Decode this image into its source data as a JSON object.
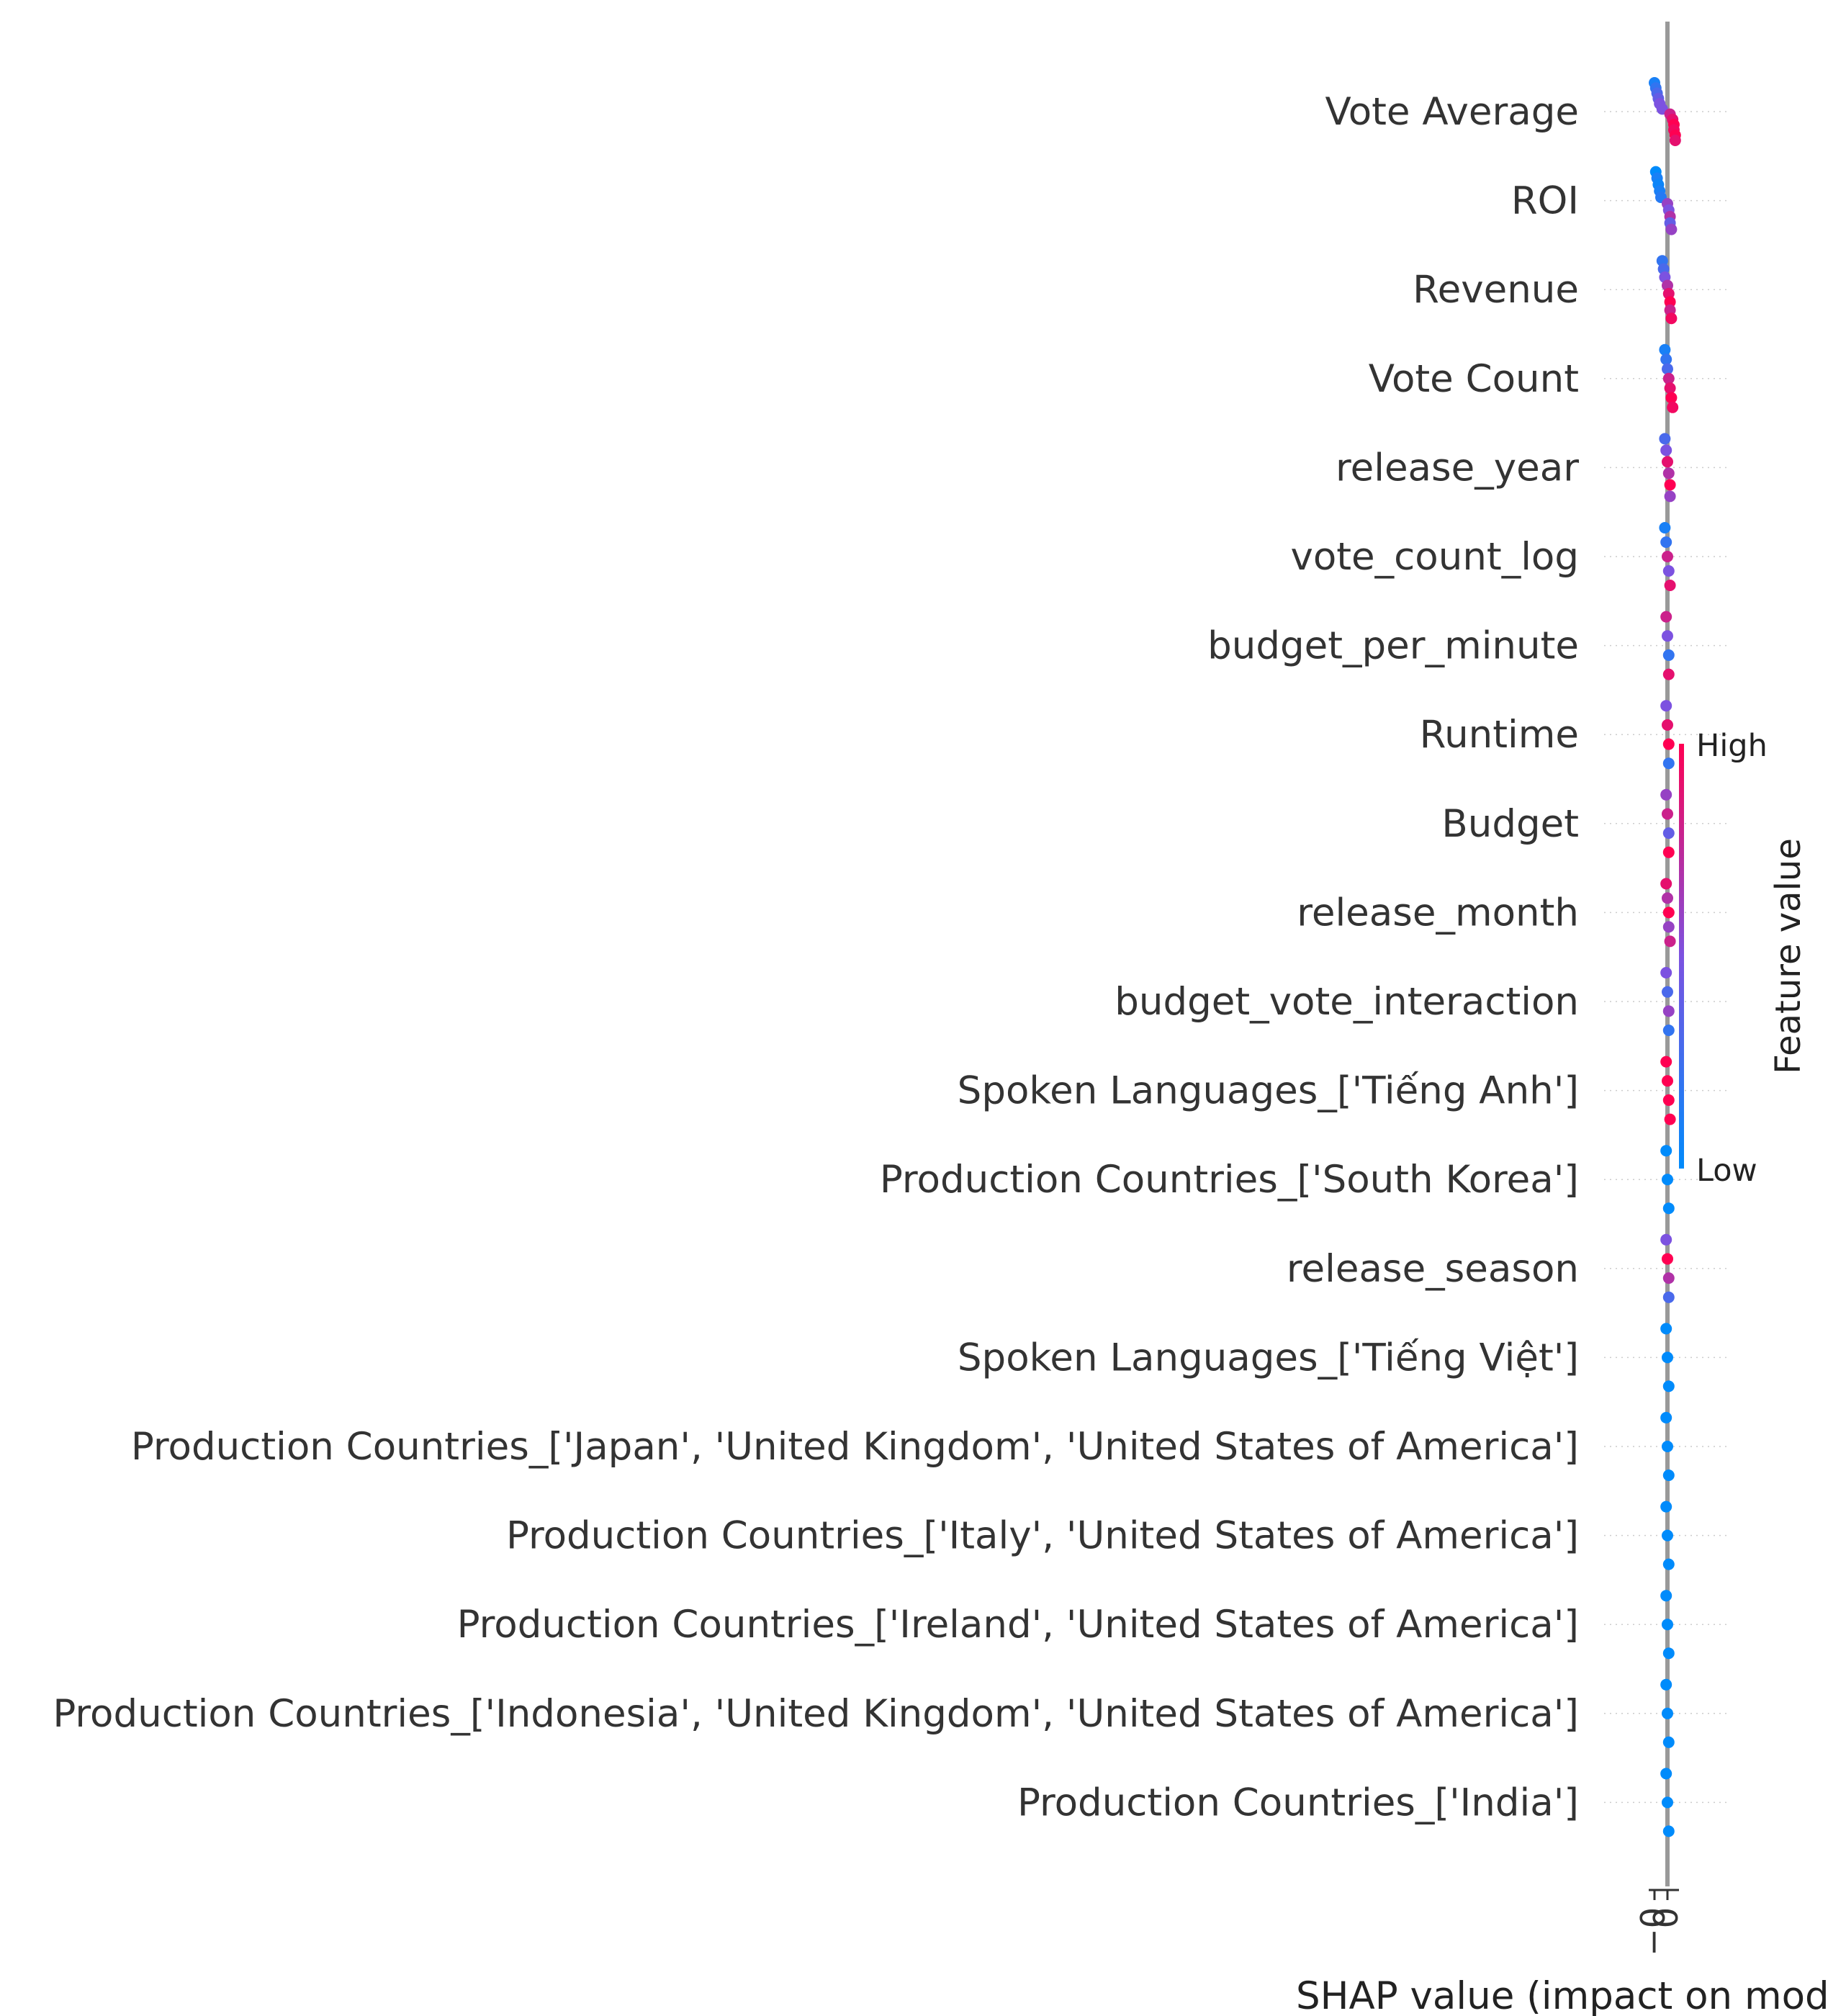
{
  "chart_data": {
    "type": "scatter",
    "subtype": "shap-beeswarm",
    "xlabel": "SHAP value (impact on model output)",
    "ylabel": "",
    "xlim": [
      -0.03,
      0.12
    ],
    "xticks": [
      {
        "value": -0.01,
        "label": "−0"
      },
      {
        "value": 0.0,
        "label": "0"
      }
    ],
    "colorbar": {
      "label": "Feature value",
      "high_label": "High",
      "low_label": "Low",
      "high_color": "#ff0052",
      "mid_color": "#7c52e0",
      "low_color": "#008bfb"
    },
    "features": [
      {
        "name": "Vote Average",
        "points": [
          {
            "shap": -0.01,
            "value": 0.1
          },
          {
            "shap": -0.009,
            "value": 0.2
          },
          {
            "shap": -0.008,
            "value": 0.3
          },
          {
            "shap": -0.007,
            "value": 0.4
          },
          {
            "shap": -0.006,
            "value": 0.5
          },
          {
            "shap": -0.004,
            "value": 0.5
          },
          {
            "shap": 0.002,
            "value": 0.8
          },
          {
            "shap": 0.004,
            "value": 0.9
          },
          {
            "shap": 0.005,
            "value": 1.0
          },
          {
            "shap": 0.005,
            "value": 0.95
          },
          {
            "shap": 0.006,
            "value": 1.0
          },
          {
            "shap": 0.006,
            "value": 0.9
          }
        ]
      },
      {
        "name": "ROI",
        "points": [
          {
            "shap": -0.009,
            "value": 0.0
          },
          {
            "shap": -0.008,
            "value": 0.1
          },
          {
            "shap": -0.007,
            "value": 0.05
          },
          {
            "shap": -0.006,
            "value": 0.1
          },
          {
            "shap": -0.005,
            "value": 0.15
          },
          {
            "shap": 0.0,
            "value": 0.6
          },
          {
            "shap": 0.001,
            "value": 0.5
          },
          {
            "shap": 0.002,
            "value": 0.7
          },
          {
            "shap": 0.002,
            "value": 0.4
          },
          {
            "shap": 0.003,
            "value": 0.6
          }
        ]
      },
      {
        "name": "Revenue",
        "points": [
          {
            "shap": -0.004,
            "value": 0.2
          },
          {
            "shap": -0.003,
            "value": 0.3
          },
          {
            "shap": -0.002,
            "value": 0.5
          },
          {
            "shap": 0.0,
            "value": 0.7
          },
          {
            "shap": 0.001,
            "value": 0.9
          },
          {
            "shap": 0.002,
            "value": 1.0
          },
          {
            "shap": 0.002,
            "value": 0.8
          },
          {
            "shap": 0.003,
            "value": 0.95
          }
        ]
      },
      {
        "name": "Vote Count",
        "points": [
          {
            "shap": -0.002,
            "value": 0.1
          },
          {
            "shap": -0.001,
            "value": 0.2
          },
          {
            "shap": 0.0,
            "value": 0.3
          },
          {
            "shap": 0.001,
            "value": 0.8
          },
          {
            "shap": 0.002,
            "value": 0.9
          },
          {
            "shap": 0.003,
            "value": 1.0
          },
          {
            "shap": 0.004,
            "value": 0.95
          }
        ]
      },
      {
        "name": "release_year",
        "points": [
          {
            "shap": -0.002,
            "value": 0.3
          },
          {
            "shap": -0.001,
            "value": 0.5
          },
          {
            "shap": 0.0,
            "value": 0.9
          },
          {
            "shap": 0.001,
            "value": 0.7
          },
          {
            "shap": 0.002,
            "value": 1.0
          },
          {
            "shap": 0.002,
            "value": 0.6
          }
        ]
      },
      {
        "name": "vote_count_log",
        "points": [
          {
            "shap": -0.002,
            "value": 0.1
          },
          {
            "shap": -0.001,
            "value": 0.2
          },
          {
            "shap": 0.0,
            "value": 0.8
          },
          {
            "shap": 0.001,
            "value": 0.5
          },
          {
            "shap": 0.002,
            "value": 0.9
          }
        ]
      },
      {
        "name": "budget_per_minute",
        "points": [
          {
            "shap": -0.001,
            "value": 0.8
          },
          {
            "shap": 0.0,
            "value": 0.5
          },
          {
            "shap": 0.001,
            "value": 0.2
          },
          {
            "shap": 0.001,
            "value": 0.9
          }
        ]
      },
      {
        "name": "Runtime",
        "points": [
          {
            "shap": -0.001,
            "value": 0.5
          },
          {
            "shap": 0.0,
            "value": 0.9
          },
          {
            "shap": 0.001,
            "value": 1.0
          },
          {
            "shap": 0.001,
            "value": 0.2
          }
        ]
      },
      {
        "name": "Budget",
        "points": [
          {
            "shap": -0.001,
            "value": 0.6
          },
          {
            "shap": 0.0,
            "value": 0.8
          },
          {
            "shap": 0.001,
            "value": 0.4
          },
          {
            "shap": 0.001,
            "value": 1.0
          }
        ]
      },
      {
        "name": "release_month",
        "points": [
          {
            "shap": -0.001,
            "value": 0.9
          },
          {
            "shap": 0.0,
            "value": 0.7
          },
          {
            "shap": 0.001,
            "value": 1.0
          },
          {
            "shap": 0.001,
            "value": 0.6
          },
          {
            "shap": 0.002,
            "value": 0.8
          }
        ]
      },
      {
        "name": "budget_vote_interaction",
        "points": [
          {
            "shap": -0.001,
            "value": 0.5
          },
          {
            "shap": 0.0,
            "value": 0.3
          },
          {
            "shap": 0.001,
            "value": 0.6
          },
          {
            "shap": 0.001,
            "value": 0.2
          }
        ]
      },
      {
        "name": "Spoken Languages_['Tiếng Anh']",
        "points": [
          {
            "shap": -0.001,
            "value": 1.0
          },
          {
            "shap": 0.0,
            "value": 1.0
          },
          {
            "shap": 0.001,
            "value": 1.0
          },
          {
            "shap": 0.002,
            "value": 1.0
          }
        ]
      },
      {
        "name": "Production Countries_['South Korea']",
        "points": [
          {
            "shap": -0.001,
            "value": 0.0
          },
          {
            "shap": 0.0,
            "value": 0.0
          },
          {
            "shap": 0.001,
            "value": 0.0
          }
        ]
      },
      {
        "name": "release_season",
        "points": [
          {
            "shap": -0.001,
            "value": 0.5
          },
          {
            "shap": 0.0,
            "value": 1.0
          },
          {
            "shap": 0.001,
            "value": 0.7
          },
          {
            "shap": 0.001,
            "value": 0.3
          }
        ]
      },
      {
        "name": "Spoken Languages_['Tiếng Việt']",
        "points": [
          {
            "shap": -0.001,
            "value": 0.0
          },
          {
            "shap": 0.0,
            "value": 0.0
          },
          {
            "shap": 0.001,
            "value": 0.0
          }
        ]
      },
      {
        "name": "Production Countries_['Japan', 'United Kingdom', 'United States of America']",
        "points": [
          {
            "shap": -0.001,
            "value": 0.0
          },
          {
            "shap": 0.0,
            "value": 0.0
          },
          {
            "shap": 0.001,
            "value": 0.0
          }
        ]
      },
      {
        "name": "Production Countries_['Italy', 'United States of America']",
        "points": [
          {
            "shap": -0.001,
            "value": 0.0
          },
          {
            "shap": 0.0,
            "value": 0.0
          },
          {
            "shap": 0.001,
            "value": 0.0
          }
        ]
      },
      {
        "name": "Production Countries_['Ireland', 'United States of America']",
        "points": [
          {
            "shap": -0.001,
            "value": 0.0
          },
          {
            "shap": 0.0,
            "value": 0.0
          },
          {
            "shap": 0.001,
            "value": 0.0
          }
        ]
      },
      {
        "name": "Production Countries_['Indonesia', 'United Kingdom', 'United States of America']",
        "points": [
          {
            "shap": -0.001,
            "value": 0.0
          },
          {
            "shap": 0.0,
            "value": 0.0
          },
          {
            "shap": 0.001,
            "value": 0.0
          }
        ]
      },
      {
        "name": "Production Countries_['India']",
        "points": [
          {
            "shap": -0.001,
            "value": 0.0
          },
          {
            "shap": 0.0,
            "value": 0.0
          },
          {
            "shap": 0.001,
            "value": 0.0
          }
        ]
      }
    ]
  }
}
